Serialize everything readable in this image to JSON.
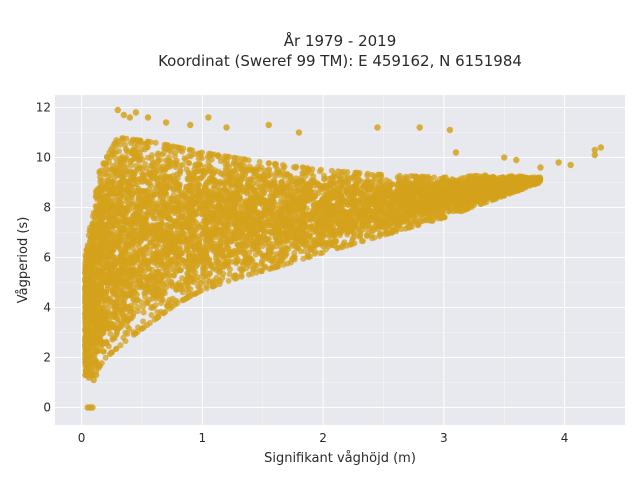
{
  "chart_data": {
    "type": "scatter",
    "title": [
      "År 1979 - 2019",
      "Koordinat (Sweref 99 TM): E 459162, N 6151984"
    ],
    "xlabel": "Signifikant våghöjd (m)",
    "ylabel": "Vågperiod (s)",
    "xlim": [
      -0.22,
      4.5
    ],
    "ylim": [
      -0.7,
      12.5
    ],
    "xticks": [
      0,
      1,
      2,
      3,
      4
    ],
    "yticks": [
      0,
      2,
      4,
      6,
      8,
      10,
      12
    ],
    "grid": true,
    "point_color": "#d4a21b",
    "plot_background": "#e8e8ef",
    "legend": "none",
    "series": [
      {
        "points": [
          [
            0.05,
            0.0
          ],
          [
            0.07,
            0.0
          ],
          [
            0.09,
            0.0
          ],
          [
            0.06,
            1.2
          ],
          [
            0.1,
            1.1
          ],
          [
            0.08,
            1.5
          ],
          [
            0.12,
            1.3
          ],
          [
            0.3,
            11.9
          ],
          [
            0.35,
            11.7
          ],
          [
            0.4,
            11.6
          ],
          [
            0.45,
            11.8
          ],
          [
            0.55,
            11.6
          ],
          [
            0.7,
            11.4
          ],
          [
            0.9,
            11.3
          ],
          [
            1.05,
            11.6
          ],
          [
            1.2,
            11.2
          ],
          [
            1.55,
            11.3
          ],
          [
            1.8,
            11.0
          ],
          [
            2.45,
            11.2
          ],
          [
            2.8,
            11.2
          ],
          [
            3.05,
            11.1
          ],
          [
            3.1,
            10.2
          ],
          [
            3.5,
            10.0
          ],
          [
            3.6,
            9.9
          ],
          [
            3.8,
            9.6
          ],
          [
            3.95,
            9.8
          ],
          [
            4.05,
            9.7
          ],
          [
            4.25,
            10.3
          ],
          [
            4.3,
            10.4
          ],
          [
            4.25,
            10.1
          ]
        ]
      }
    ],
    "density_band": {
      "note": "dense point cloud: lower/upper period bounds as a function of wave height",
      "lower": [
        [
          0.03,
          1.3
        ],
        [
          0.1,
          1.3
        ],
        [
          0.2,
          2.0
        ],
        [
          0.4,
          2.8
        ],
        [
          0.6,
          3.5
        ],
        [
          0.8,
          4.2
        ],
        [
          1.0,
          4.7
        ],
        [
          1.3,
          5.2
        ],
        [
          1.6,
          5.6
        ],
        [
          2.0,
          6.2
        ],
        [
          2.5,
          6.9
        ],
        [
          3.0,
          7.6
        ],
        [
          3.4,
          8.3
        ],
        [
          3.8,
          9.0
        ]
      ],
      "upper": [
        [
          0.03,
          6.0
        ],
        [
          0.08,
          7.5
        ],
        [
          0.15,
          9.5
        ],
        [
          0.3,
          10.8
        ],
        [
          0.6,
          10.6
        ],
        [
          1.0,
          10.2
        ],
        [
          1.5,
          9.8
        ],
        [
          2.0,
          9.5
        ],
        [
          2.5,
          9.3
        ],
        [
          3.0,
          9.2
        ],
        [
          3.4,
          9.3
        ],
        [
          3.8,
          9.2
        ]
      ]
    }
  }
}
